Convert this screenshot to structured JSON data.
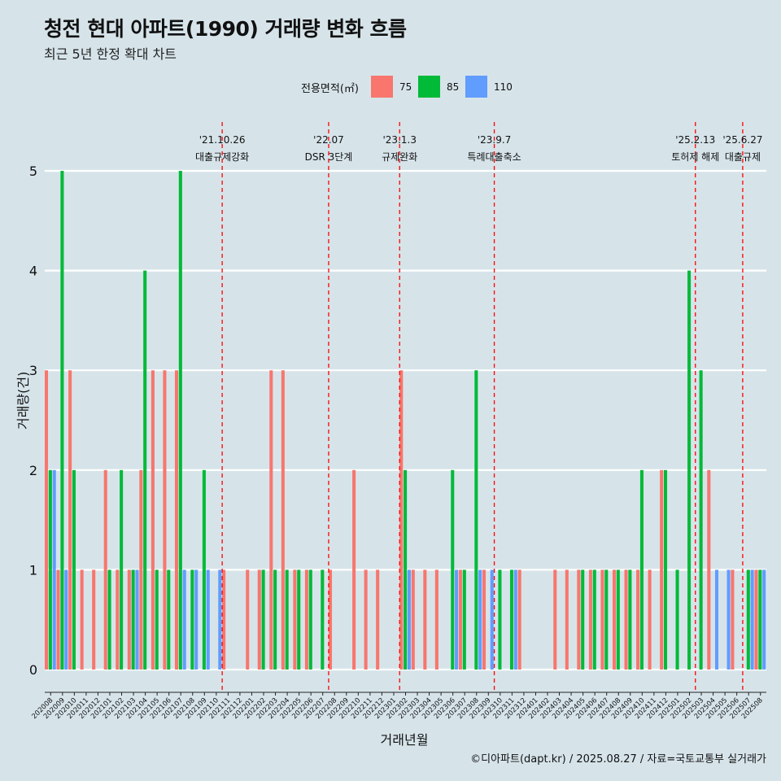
{
  "header": {
    "title": "청전 현대 아파트(1990) 거래량 변화 흐름",
    "subtitle": "최근 5년 한정 확대 차트"
  },
  "footer": {
    "caption": "©디아파트(dapt.kr) / 2025.08.27 / 자료=국토교통부 실거래가"
  },
  "colors": {
    "75": "#f8766d",
    "85": "#00ba38",
    "110": "#619cff",
    "event_line": "#ff0000",
    "background": "#d6e4ea",
    "grid": "#ffffff"
  },
  "chart_data": {
    "type": "bar",
    "title": "청전 현대 아파트(1990) 거래량 변화 흐름",
    "subtitle": "최근 5년 한정 확대 차트",
    "xlabel": "거래년월",
    "ylabel": "거래량(건)",
    "ylim": [
      0,
      5
    ],
    "y_ticks": [
      0,
      1,
      2,
      3,
      4,
      5
    ],
    "grid": true,
    "legend": {
      "title": "전용면적(㎡)",
      "placement": "top",
      "entries": [
        "75",
        "85",
        "110"
      ]
    },
    "categories": [
      "202008",
      "202009",
      "202010",
      "202011",
      "202012",
      "202101",
      "202102",
      "202103",
      "202104",
      "202105",
      "202106",
      "202107",
      "202108",
      "202109",
      "202110",
      "202111",
      "202112",
      "202201",
      "202202",
      "202203",
      "202204",
      "202205",
      "202206",
      "202207",
      "202208",
      "202209",
      "202210",
      "202211",
      "202212",
      "202301",
      "202302",
      "202303",
      "202304",
      "202305",
      "202306",
      "202307",
      "202308",
      "202309",
      "202310",
      "202311",
      "202312",
      "202401",
      "202402",
      "202403",
      "202404",
      "202405",
      "202406",
      "202407",
      "202408",
      "202409",
      "202410",
      "202411",
      "202412",
      "202501",
      "202502",
      "202503",
      "202504",
      "202505",
      "202506",
      "202507",
      "202508"
    ],
    "series": [
      {
        "name": "75",
        "values": [
          3,
          1,
          3,
          1,
          1,
          2,
          1,
          1,
          2,
          3,
          3,
          3,
          0,
          0,
          0,
          1,
          0,
          1,
          1,
          3,
          3,
          1,
          1,
          0,
          1,
          0,
          2,
          1,
          1,
          0,
          3,
          1,
          1,
          1,
          0,
          1,
          0,
          1,
          0,
          0,
          1,
          0,
          0,
          1,
          1,
          1,
          1,
          1,
          1,
          1,
          1,
          1,
          2,
          0,
          0,
          0,
          2,
          0,
          1,
          0,
          1
        ]
      },
      {
        "name": "85",
        "values": [
          2,
          5,
          2,
          0,
          0,
          1,
          2,
          1,
          4,
          1,
          1,
          5,
          1,
          2,
          0,
          0,
          0,
          0,
          1,
          1,
          1,
          1,
          1,
          1,
          0,
          0,
          0,
          0,
          0,
          0,
          2,
          0,
          0,
          0,
          2,
          1,
          3,
          0,
          1,
          1,
          0,
          0,
          0,
          0,
          0,
          1,
          1,
          1,
          1,
          1,
          2,
          0,
          2,
          1,
          4,
          3,
          0,
          0,
          0,
          1,
          1
        ]
      },
      {
        "name": "110",
        "values": [
          2,
          1,
          0,
          0,
          0,
          0,
          0,
          1,
          0,
          0,
          0,
          1,
          1,
          1,
          1,
          0,
          0,
          0,
          0,
          0,
          0,
          0,
          0,
          0,
          0,
          0,
          0,
          0,
          0,
          0,
          1,
          0,
          0,
          0,
          1,
          0,
          1,
          1,
          0,
          1,
          0,
          0,
          0,
          0,
          0,
          0,
          0,
          0,
          0,
          0,
          0,
          0,
          0,
          0,
          0,
          0,
          1,
          1,
          0,
          1,
          1
        ]
      }
    ],
    "events": [
      {
        "after": "202110",
        "date": "'21.10.26",
        "label": "대출규제강화"
      },
      {
        "after": "202207",
        "date": "'22.07",
        "label": "DSR 3단계"
      },
      {
        "after": "202301",
        "date": "'23.1.3",
        "label": "규제완화"
      },
      {
        "after": "202309",
        "date": "'23.9.7",
        "label": "특례대출축소"
      },
      {
        "after": "202502",
        "date": "'25.2.13",
        "label": "토허제 해제"
      },
      {
        "after": "202506",
        "date": "'25.6.27",
        "label": "대출규제"
      }
    ]
  }
}
